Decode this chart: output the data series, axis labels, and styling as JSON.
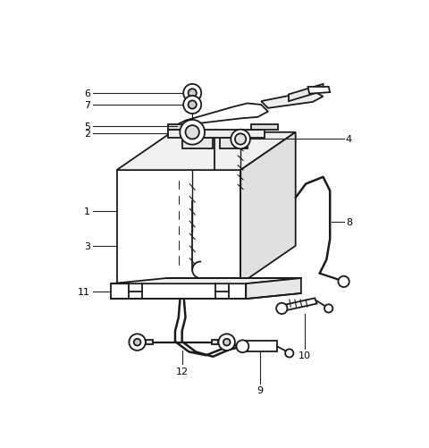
{
  "bg_color": "#ffffff",
  "lc": "#1a1a1a",
  "lw": 1.3,
  "fig_width": 4.8,
  "fig_height": 5.02,
  "dpi": 100
}
